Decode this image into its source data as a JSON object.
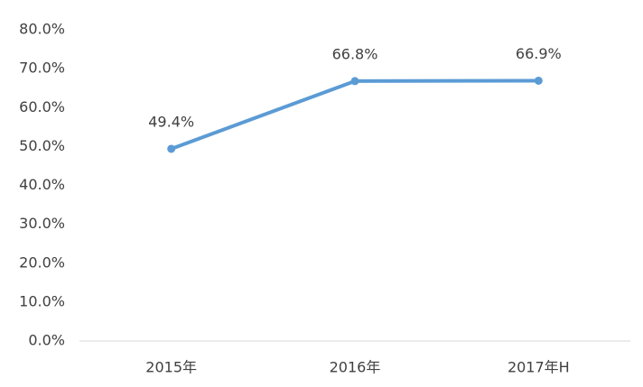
{
  "chart_data": {
    "type": "line",
    "categories": [
      "2015年",
      "2016年",
      "2017年H"
    ],
    "series": [
      {
        "color": "#5b9bd5",
        "values": [
          49.4,
          66.8,
          66.9
        ],
        "value_labels": [
          "49.4%",
          "66.8%",
          "66.9%"
        ]
      }
    ],
    "ylim": [
      0,
      80
    ],
    "yticks": [
      {
        "value": 0,
        "label": "0.0%"
      },
      {
        "value": 10,
        "label": "10.0%"
      },
      {
        "value": 20,
        "label": "20.0%"
      },
      {
        "value": 30,
        "label": "30.0%"
      },
      {
        "value": 40,
        "label": "40.0%"
      },
      {
        "value": 50,
        "label": "50.0%"
      },
      {
        "value": 60,
        "label": "60.0%"
      },
      {
        "value": 70,
        "label": "70.0%"
      },
      {
        "value": 80,
        "label": "80.0%"
      }
    ],
    "grid": false
  }
}
